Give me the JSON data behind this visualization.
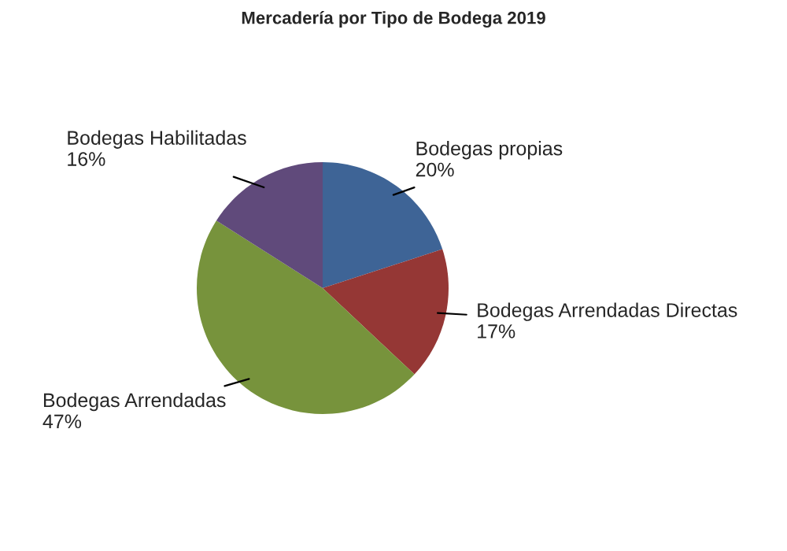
{
  "chart_data": {
    "type": "pie",
    "title": "Mercadería por Tipo de Bodega 2019",
    "categories": [
      "Bodegas propias",
      "Bodegas Arrendadas Directas",
      "Bodegas Arrendadas",
      "Bodegas Habilitadas"
    ],
    "values": [
      20,
      17,
      47,
      16
    ],
    "value_labels": [
      "20%",
      "17%",
      "47%",
      "16%"
    ],
    "colors": [
      "#3e6496",
      "#953735",
      "#77933c",
      "#604a7b"
    ],
    "legend": false
  }
}
